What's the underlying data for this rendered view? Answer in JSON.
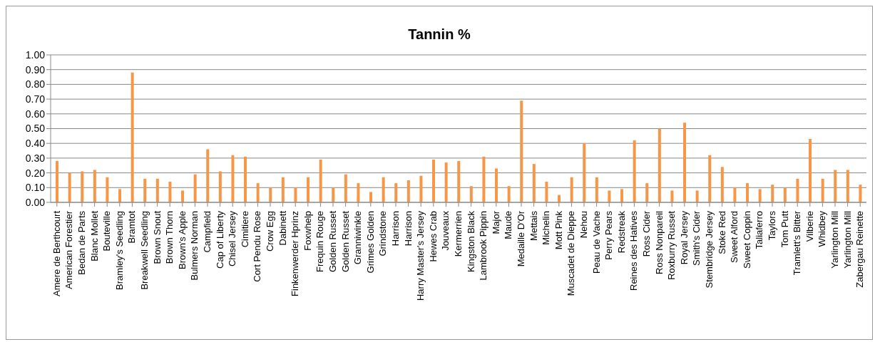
{
  "chart_data": {
    "type": "bar",
    "title": "Tannin %",
    "categories": [
      "Amere de Berthcourt",
      "American Forestier",
      "Bedan de Parts",
      "Blanc Mollet",
      "Bouteville",
      "Bramley's Seedling",
      "Bramtot",
      "Breakwell Seedling",
      "Brown Snout",
      "Brown Thorn",
      "Brown's Apple",
      "Bulmers Norman",
      "Campfield",
      "Cap of Liberty",
      "Chisel Jersey",
      "Cimitiere",
      "Cort Pendu Rose",
      "Crow Egg",
      "Dabinett",
      "Finkenwerder Hprinz",
      "Foxwhelp",
      "Frequin Rouge",
      "Golden Russet",
      "Golden Russet",
      "Granniwinkle",
      "Grimes Golden",
      "Grindstone",
      "Harrison",
      "Harrison",
      "Harry Master's Jersey",
      "Hewes Crab",
      "Jouveaux",
      "Kermerrien",
      "Kingston Black",
      "Lambrook Pippin",
      "Major",
      "Maude",
      "Medaille D'Or",
      "Mettais",
      "Michelin",
      "Mott Pink",
      "Muscadet de Dieppe",
      "Nehou",
      "Peau de Vache",
      "Perry Pears",
      "Redstreak",
      "Reines des Hatives",
      "Ross Cider",
      "Ross Nonpareil",
      "Roxburry Russet",
      "Royal Jersey",
      "Smith's Cider",
      "Stembridge Jersey",
      "Stoke Red",
      "Sweet Alford",
      "Sweet Coppin",
      "Taliaferro",
      "Taylors",
      "Tom Putt",
      "Tramlett's Bitter",
      "Vilberie",
      "Whidbey",
      "Yarlington Mill",
      "Yarlington Mill",
      "Zabergau Reinette"
    ],
    "values": [
      0.28,
      0.2,
      0.21,
      0.22,
      0.17,
      0.09,
      0.88,
      0.16,
      0.16,
      0.14,
      0.08,
      0.19,
      0.36,
      0.21,
      0.32,
      0.31,
      0.13,
      0.1,
      0.17,
      0.1,
      0.17,
      0.29,
      0.1,
      0.19,
      0.13,
      0.07,
      0.17,
      0.13,
      0.15,
      0.18,
      0.29,
      0.27,
      0.28,
      0.11,
      0.31,
      0.23,
      0.11,
      0.69,
      0.26,
      0.14,
      0.05,
      0.17,
      0.4,
      0.17,
      0.08,
      0.09,
      0.42,
      0.13,
      0.5,
      0.08,
      0.54,
      0.08,
      0.32,
      0.24,
      0.1,
      0.13,
      0.09,
      0.12,
      0.1,
      0.16,
      0.43,
      0.16,
      0.22,
      0.22,
      0.12
    ],
    "color": "#f79646",
    "ylim": [
      0,
      1
    ],
    "yticks": [
      {
        "value": 0,
        "label": "0.00"
      },
      {
        "value": 0.1,
        "label": "0.10"
      },
      {
        "value": 0.2,
        "label": "0.20"
      },
      {
        "value": 0.3,
        "label": "0.30"
      },
      {
        "value": 0.4,
        "label": "0.40"
      },
      {
        "value": 0.5,
        "label": "0.50"
      },
      {
        "value": 0.6,
        "label": "0.60"
      },
      {
        "value": 0.7,
        "label": "0.70"
      },
      {
        "value": 0.8,
        "label": "0.80"
      },
      {
        "value": 0.9,
        "label": "0.90"
      },
      {
        "value": 1,
        "label": "1.00"
      }
    ],
    "grid": "y",
    "legend": false
  }
}
